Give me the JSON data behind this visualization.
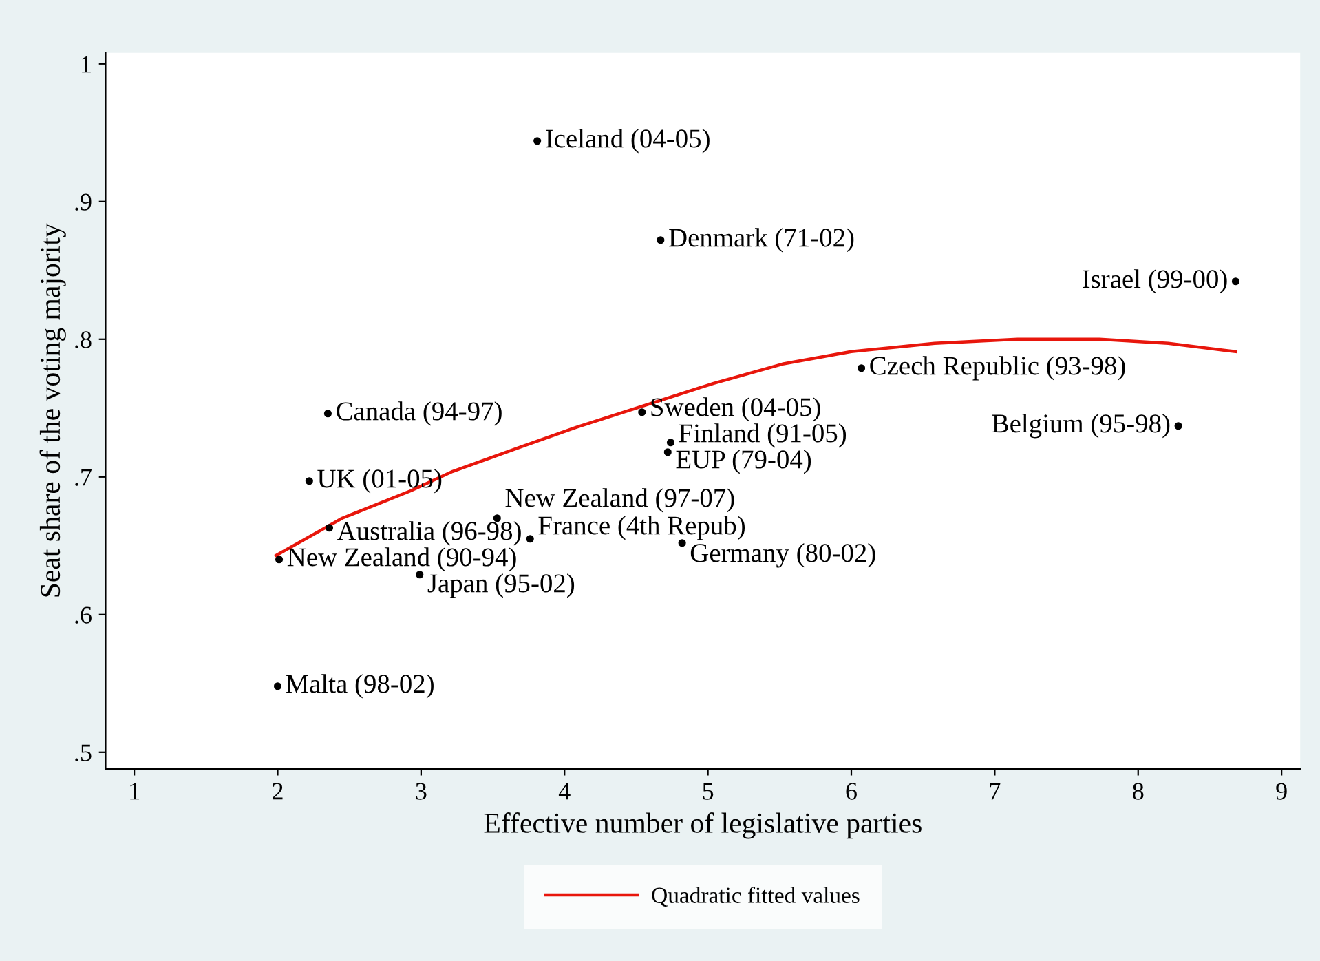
{
  "chart_data": {
    "type": "line",
    "xlabel": "Effective number of legislative parties",
    "ylabel": "Seat share of the voting majority",
    "xlim": [
      0.8,
      9.13
    ],
    "ylim": [
      0.488,
      1.008
    ],
    "xticks": [
      1,
      2,
      3,
      4,
      5,
      6,
      7,
      8,
      9
    ],
    "yticks": [
      {
        "value": 0.5,
        "label": ".5"
      },
      {
        "value": 0.6,
        "label": ".6"
      },
      {
        "value": 0.7,
        "label": ".7"
      },
      {
        "value": 0.8,
        "label": ".8"
      },
      {
        "value": 0.9,
        "label": ".9"
      },
      {
        "value": 1,
        "label": "1"
      }
    ],
    "grid": false,
    "legend": "bottom",
    "marker": "none",
    "line_style": "solid",
    "series": [
      {
        "name": "Quadratic fitted values",
        "color": "#e8160c",
        "x": [
          1.99,
          2.45,
          2.93,
          3.22,
          3.7,
          4.08,
          4.56,
          5.04,
          5.52,
          6.0,
          6.58,
          7.16,
          7.73,
          8.21,
          8.68
        ],
        "values": [
          0.643,
          0.67,
          0.69,
          0.704,
          0.722,
          0.736,
          0.752,
          0.768,
          0.782,
          0.791,
          0.797,
          0.8,
          0.8,
          0.797,
          0.791
        ]
      },
      {
        "type": "scatter",
        "marker": "circle",
        "name": "Iceland (04-05)",
        "color": "#000000",
        "x": [
          3.81
        ],
        "values": [
          0.944
        ]
      },
      {
        "type": "scatter",
        "marker": "circle",
        "name": "Denmark (71-02)",
        "color": "#000000",
        "x": [
          4.67
        ],
        "values": [
          0.872
        ]
      },
      {
        "type": "scatter",
        "marker": "circle",
        "name": "Israel (99-00)",
        "color": "#000000",
        "x": [
          8.68
        ],
        "values": [
          0.842
        ]
      },
      {
        "type": "scatter",
        "marker": "circle",
        "name": "Czech Republic (93-98)",
        "color": "#000000",
        "x": [
          6.07
        ],
        "values": [
          0.779
        ]
      },
      {
        "type": "scatter",
        "marker": "circle",
        "name": "Canada (94-97)",
        "color": "#000000",
        "x": [
          2.35
        ],
        "values": [
          0.746
        ]
      },
      {
        "type": "scatter",
        "marker": "circle",
        "name": "Sweden (04-05)",
        "color": "#000000",
        "x": [
          4.54
        ],
        "values": [
          0.747
        ]
      },
      {
        "type": "scatter",
        "marker": "circle",
        "name": "Belgium (95-98)",
        "color": "#000000",
        "x": [
          8.28
        ],
        "values": [
          0.737
        ]
      },
      {
        "type": "scatter",
        "marker": "circle",
        "name": "Finland (91-05)",
        "color": "#000000",
        "x": [
          4.74
        ],
        "values": [
          0.725
        ]
      },
      {
        "type": "scatter",
        "marker": "circle",
        "name": "EUP (79-04)",
        "color": "#000000",
        "x": [
          4.72
        ],
        "values": [
          0.718
        ]
      },
      {
        "type": "scatter",
        "marker": "circle",
        "name": "UK (01-05)",
        "color": "#000000",
        "x": [
          2.22
        ],
        "values": [
          0.697
        ]
      },
      {
        "type": "scatter",
        "marker": "circle",
        "name": "New Zealand (97-07)",
        "color": "#000000",
        "x": [
          3.53
        ],
        "values": [
          0.67
        ]
      },
      {
        "type": "scatter",
        "marker": "circle",
        "name": "Australia (96-98)",
        "color": "#000000",
        "x": [
          2.36
        ],
        "values": [
          0.663
        ]
      },
      {
        "type": "scatter",
        "marker": "circle",
        "name": "France (4th Repub)",
        "color": "#000000",
        "x": [
          3.76
        ],
        "values": [
          0.655
        ]
      },
      {
        "type": "scatter",
        "marker": "circle",
        "name": "Germany (80-02)",
        "color": "#000000",
        "x": [
          4.82
        ],
        "values": [
          0.652
        ]
      },
      {
        "type": "scatter",
        "marker": "circle",
        "name": "New Zealand (90-94)",
        "color": "#000000",
        "x": [
          2.01
        ],
        "values": [
          0.64
        ]
      },
      {
        "type": "scatter",
        "marker": "circle",
        "name": "Japan (95-02)",
        "color": "#000000",
        "x": [
          2.99
        ],
        "values": [
          0.629
        ]
      },
      {
        "type": "scatter",
        "marker": "circle",
        "name": "Malta (98-02)",
        "color": "#000000",
        "x": [
          2.0
        ],
        "values": [
          0.548
        ]
      }
    ]
  }
}
